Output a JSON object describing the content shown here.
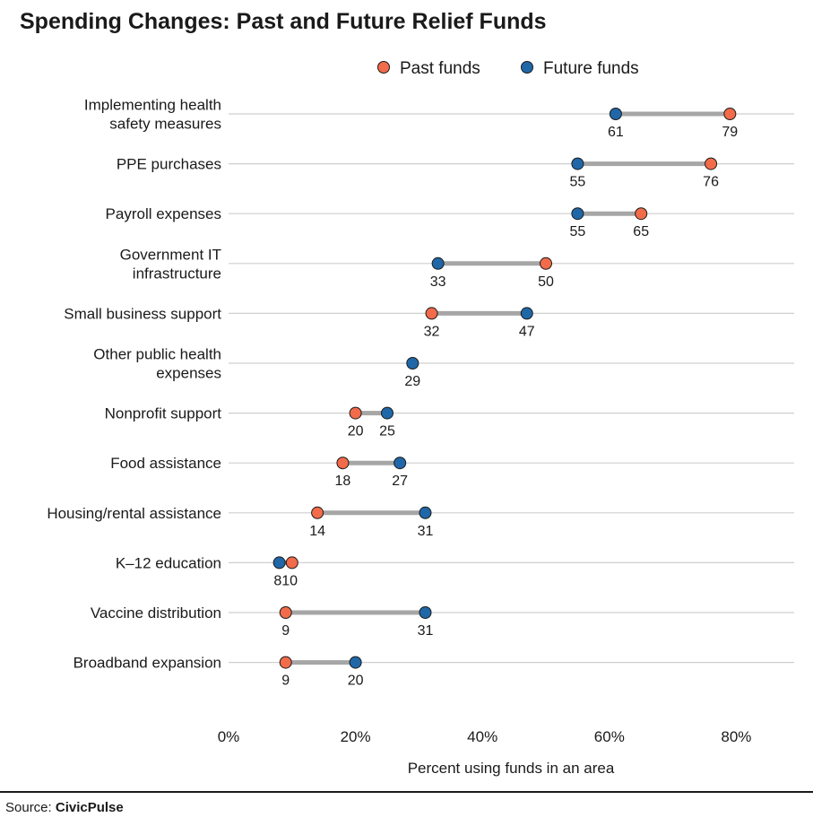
{
  "chart_data": {
    "type": "dumbbell",
    "title": "Spending Changes: Past and Future Relief Funds",
    "xlabel": "Percent using funds in an area",
    "ylabel": "",
    "xlim": [
      0,
      90
    ],
    "x_ticks": [
      0,
      20,
      40,
      60,
      80
    ],
    "x_tick_labels": [
      "0%",
      "20%",
      "40%",
      "60%",
      "80%"
    ],
    "grid": "horizontal",
    "legend_position": "top",
    "series": [
      {
        "name": "Past funds",
        "color": "#f26b4a"
      },
      {
        "name": "Future funds",
        "color": "#2067a8"
      }
    ],
    "categories": [
      {
        "label": [
          "Implementing health",
          "safety measures"
        ],
        "past": 79,
        "future": 61
      },
      {
        "label": [
          "PPE purchases"
        ],
        "past": 76,
        "future": 55
      },
      {
        "label": [
          "Payroll expenses"
        ],
        "past": 65,
        "future": 55
      },
      {
        "label": [
          "Government IT",
          "infrastructure"
        ],
        "past": 50,
        "future": 33
      },
      {
        "label": [
          "Small business support"
        ],
        "past": 32,
        "future": 47
      },
      {
        "label": [
          "Other public health",
          "expenses"
        ],
        "past": null,
        "future": 29
      },
      {
        "label": [
          "Nonprofit support"
        ],
        "past": 20,
        "future": 25
      },
      {
        "label": [
          "Food assistance"
        ],
        "past": 18,
        "future": 27
      },
      {
        "label": [
          "Housing/rental assistance"
        ],
        "past": 14,
        "future": 31
      },
      {
        "label": [
          "K–12 education"
        ],
        "past": 10,
        "future": 8
      },
      {
        "label": [
          "Vaccine distribution"
        ],
        "past": 9,
        "future": 31
      },
      {
        "label": [
          "Broadband expansion"
        ],
        "past": 9,
        "future": 20
      }
    ],
    "k12_combined_label": "810"
  },
  "colors": {
    "connector": "#a6a6a6",
    "gridline": "#cfcfcf"
  },
  "source": {
    "prefix": "Source: ",
    "name": "CivicPulse"
  }
}
